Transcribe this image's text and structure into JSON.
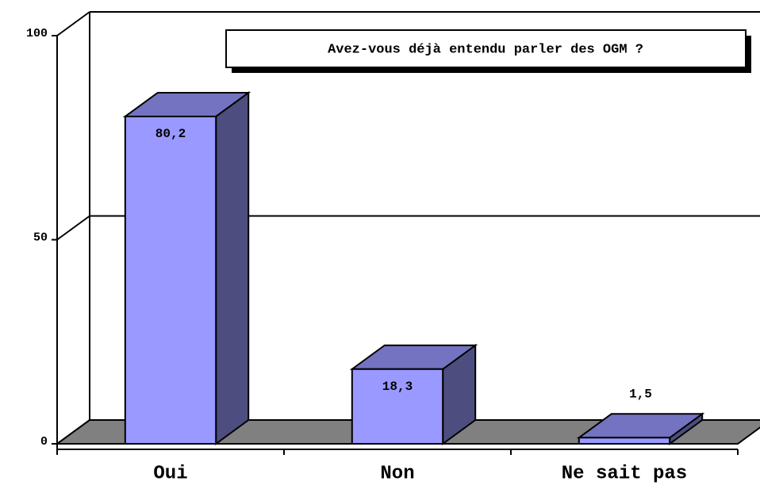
{
  "chart_data": {
    "type": "bar3d",
    "title": "Avez-vous déjà entendu parler des OGM ?",
    "categories": [
      "Oui",
      "Non",
      "Ne sait pas"
    ],
    "values": [
      80.2,
      18.3,
      1.5
    ],
    "value_labels": [
      "80,2",
      "18,3",
      "1,5"
    ],
    "color": "#9999ff",
    "ylim": [
      0,
      100
    ],
    "yticks": [
      0,
      50,
      100
    ],
    "grid": true
  }
}
